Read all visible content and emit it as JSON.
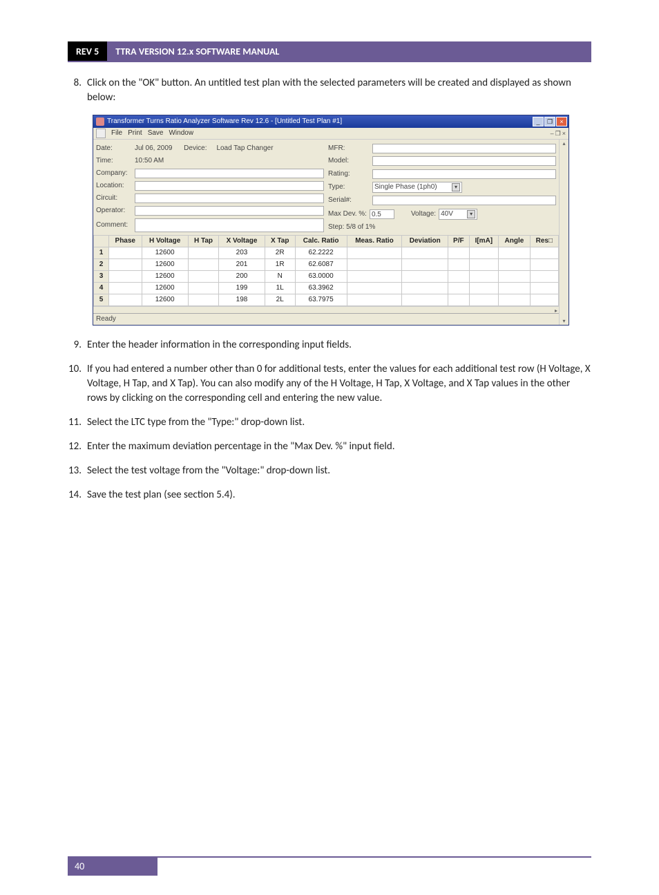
{
  "header": {
    "rev": "REV 5",
    "title": "TTRA VERSION 12.x SOFTWARE MANUAL"
  },
  "items": [
    {
      "num": "8.",
      "text": "Click on the \"OK\" button. An untitled test plan with the selected parameters will be created and displayed as shown below:"
    },
    {
      "num": "9.",
      "text": "Enter the header information in the corresponding input fields."
    },
    {
      "num": "10.",
      "text": "If you had entered a number other than 0 for additional tests, enter the values for each additional test row (H Voltage, X Voltage, H Tap, and X Tap). You can also modify any of the H Voltage, H Tap, X Voltage, and X Tap values in the other rows by clicking on the corresponding cell and entering the new value."
    },
    {
      "num": "11.",
      "text": "Select the LTC type from the \"Type:\" drop-down list."
    },
    {
      "num": "12.",
      "text": "Enter the maximum deviation percentage in the \"Max Dev. %\" input field."
    },
    {
      "num": "13.",
      "text": "Select the test voltage from the \"Voltage:\" drop-down list."
    },
    {
      "num": "14.",
      "text": "Save the test plan (see section 5.4)."
    }
  ],
  "app": {
    "title": "Transformer Turns Ratio Analyzer Software Rev 12.6 - [Untitled Test Plan #1]",
    "menus": [
      "File",
      "Print",
      "Save",
      "Window"
    ],
    "mdi_minimize": "–",
    "mdi_restore": "❐",
    "mdi_close": "×",
    "left": {
      "date_label": "Date:",
      "date_value": "Jul 06, 2009",
      "device_label": "Device:",
      "device_value": "Load Tap Changer",
      "time_label": "Time:",
      "time_value": "10:50 AM",
      "company_label": "Company:",
      "location_label": "Location:",
      "circuit_label": "Circuit:",
      "operator_label": "Operator:",
      "comment_label": "Comment:"
    },
    "right": {
      "mfr_label": "MFR:",
      "model_label": "Model:",
      "rating_label": "Rating:",
      "type_label": "Type:",
      "type_value": "Single Phase (1ph0)",
      "serial_label": "Serial#:",
      "maxdev_label": "Max Dev. %:",
      "maxdev_value": "0.5",
      "voltage_label": "Voltage:",
      "voltage_value": "40V",
      "step_label": "Step: 5/8 of 1%"
    },
    "table": {
      "columns": [
        "",
        "Phase",
        "H Voltage",
        "H Tap",
        "X Voltage",
        "X Tap",
        "Calc. Ratio",
        "Meas. Ratio",
        "Deviation",
        "P/F",
        "I[mA]",
        "Angle",
        "Res□"
      ],
      "rows": [
        [
          "1",
          "",
          "12600",
          "",
          "203",
          "2R",
          "62.2222",
          "",
          "",
          "",
          "",
          "",
          ""
        ],
        [
          "2",
          "",
          "12600",
          "",
          "201",
          "1R",
          "62.6087",
          "",
          "",
          "",
          "",
          "",
          ""
        ],
        [
          "3",
          "",
          "12600",
          "",
          "200",
          "N",
          "63.0000",
          "",
          "",
          "",
          "",
          "",
          ""
        ],
        [
          "4",
          "",
          "12600",
          "",
          "199",
          "1L",
          "63.3962",
          "",
          "",
          "",
          "",
          "",
          ""
        ],
        [
          "5",
          "",
          "12600",
          "",
          "198",
          "2L",
          "63.7975",
          "",
          "",
          "",
          "",
          "",
          ""
        ]
      ]
    },
    "status": "Ready"
  },
  "page_number": "40"
}
